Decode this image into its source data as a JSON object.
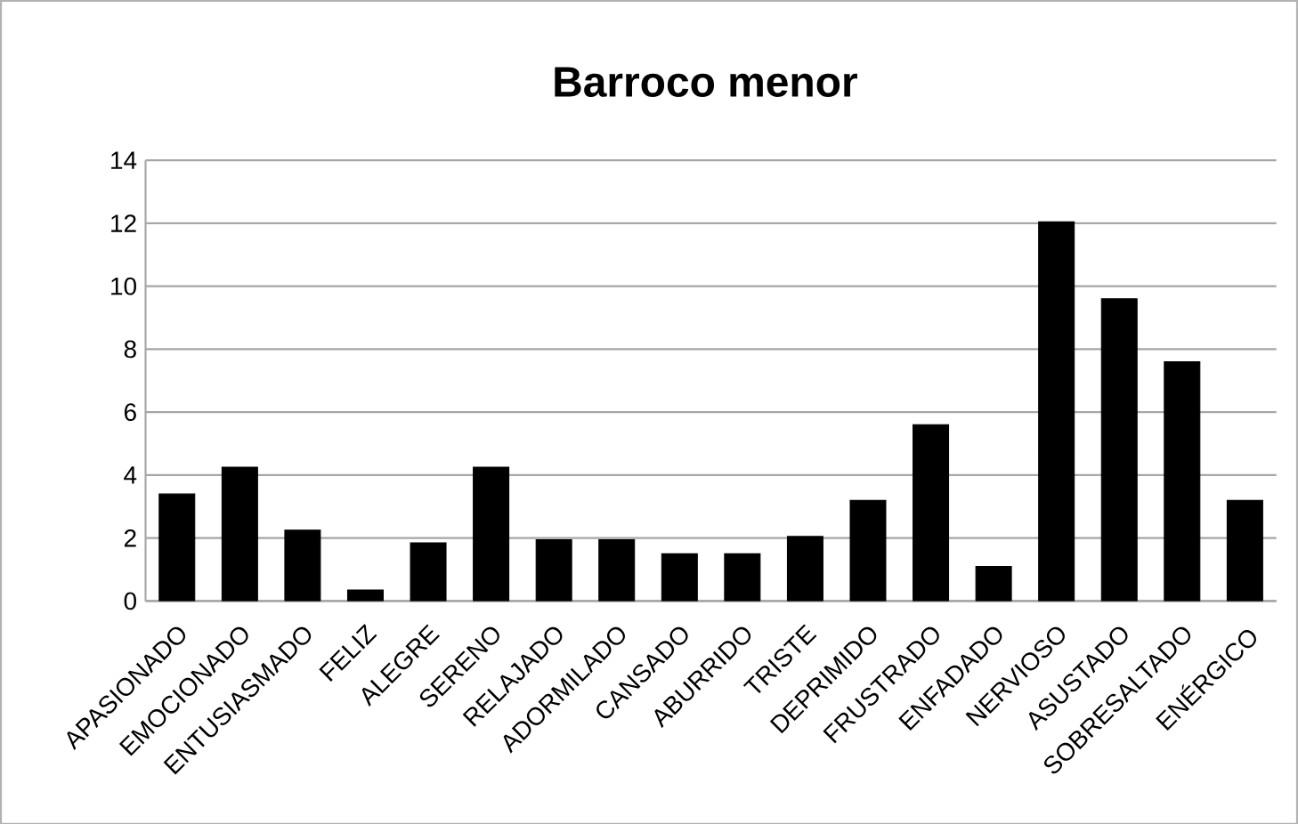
{
  "chart_data": {
    "type": "bar",
    "title": "Barroco menor",
    "categories": [
      "APASIONADO",
      "EMOCIONADO",
      "ENTUSIASMADO",
      "FELIZ",
      "ALEGRE",
      "SERENO",
      "RELAJADO",
      "ADORMILADO",
      "CANSADO",
      "ABURRIDO",
      "TRISTE",
      "DEPRIMIDO",
      "FRUSTRADO",
      "ENFADADO",
      "NERVIOSO",
      "ASUSTADO",
      "SOBRESALTADO",
      "ENÉRGICO"
    ],
    "values": [
      3.4,
      4.25,
      2.25,
      0.35,
      1.85,
      4.25,
      1.95,
      1.95,
      1.5,
      1.5,
      2.05,
      3.2,
      5.6,
      1.1,
      12.05,
      9.6,
      7.6,
      3.2
    ],
    "color": "#000000",
    "ylim": [
      0,
      14
    ],
    "yticks": [
      0,
      2,
      4,
      6,
      8,
      10,
      12,
      14
    ],
    "grid": "y"
  }
}
